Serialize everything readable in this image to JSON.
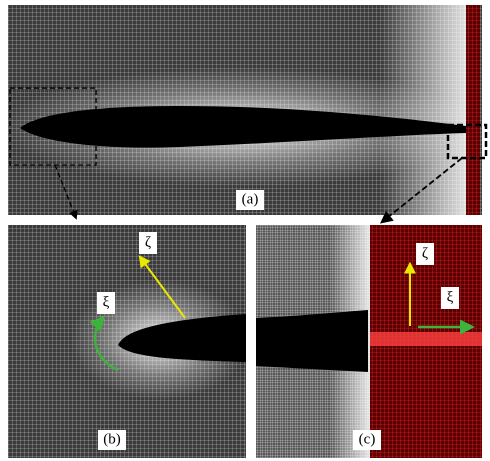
{
  "panels": [
    {
      "label": "(a)"
    },
    {
      "label": "(b)",
      "axis_labels": [
        "ζ",
        "ξ"
      ]
    },
    {
      "label": "(c)",
      "axis_labels": [
        "ζ",
        "ξ"
      ]
    }
  ]
}
